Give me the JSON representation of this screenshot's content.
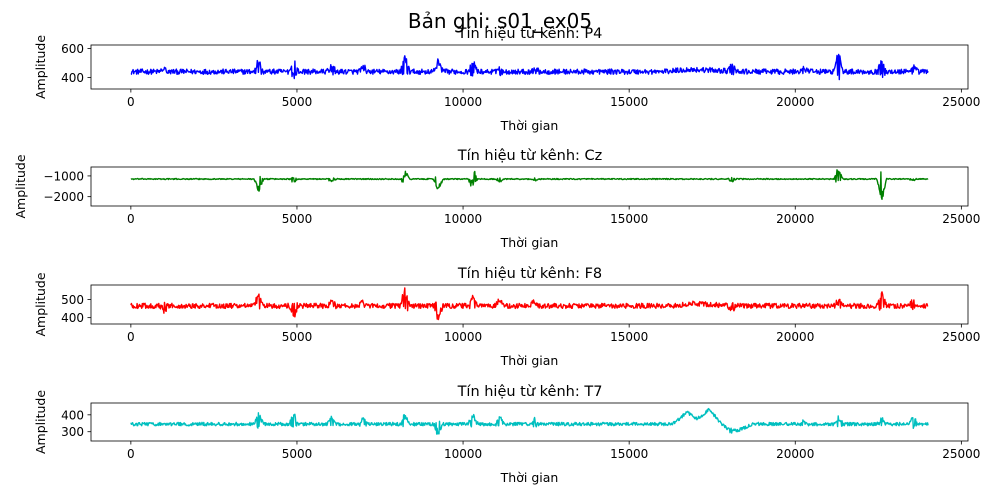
{
  "suptitle": "Bản ghi: s01_ex05",
  "chart_data": [
    {
      "type": "line",
      "title": "Tín hiệu từ kênh: P4",
      "xlabel": "Thời gian",
      "ylabel": "Amplitude",
      "color": "#0000ff",
      "xlim": [
        -1200,
        25200
      ],
      "ylim": [
        320,
        625
      ],
      "xticks": [
        0,
        5000,
        10000,
        15000,
        20000,
        25000
      ],
      "yticks": [
        400,
        600
      ],
      "series": [
        {
          "n_samples": 24000,
          "baseline": 440,
          "noise_amplitude": 18,
          "drift": [
            [
              0,
              0
            ],
            [
              16000,
              0
            ],
            [
              16800,
              15
            ],
            [
              17600,
              10
            ],
            [
              18200,
              0
            ]
          ],
          "bursts": [
            {
              "x": 1000,
              "amp": 20
            },
            {
              "x": 3850,
              "amp": 100
            },
            {
              "x": 4900,
              "amp": 100
            },
            {
              "x": 6050,
              "amp": 50
            },
            {
              "x": 7000,
              "amp": 40
            },
            {
              "x": 8250,
              "amp": 120
            },
            {
              "x": 9250,
              "amp": 90
            },
            {
              "x": 10300,
              "amp": 80
            },
            {
              "x": 11100,
              "amp": 40
            },
            {
              "x": 12150,
              "amp": 35
            },
            {
              "x": 18100,
              "amp": 60
            },
            {
              "x": 20250,
              "amp": 30
            },
            {
              "x": 21300,
              "amp": 165
            },
            {
              "x": 22600,
              "amp": 95
            },
            {
              "x": 23550,
              "amp": 50
            }
          ]
        }
      ]
    },
    {
      "type": "line",
      "title": "Tín hiệu từ kênh: Cz",
      "xlabel": "Thời gian",
      "ylabel": "Amplitude",
      "color": "#008000",
      "xlim": [
        -1200,
        25200
      ],
      "ylim": [
        -2450,
        -570
      ],
      "xticks": [
        0,
        5000,
        10000,
        15000,
        20000,
        25000
      ],
      "yticks": [
        -1000,
        -2000
      ],
      "series": [
        {
          "n_samples": 24000,
          "baseline": -1150,
          "noise_amplitude": 25,
          "drift": [],
          "bursts": [
            {
              "x": 3850,
              "amp": -650
            },
            {
              "x": 4900,
              "amp": -200
            },
            {
              "x": 6050,
              "amp": -150
            },
            {
              "x": 8250,
              "amp": 450
            },
            {
              "x": 8250,
              "amp": -200
            },
            {
              "x": 9250,
              "amp": -650
            },
            {
              "x": 10300,
              "amp": 350
            },
            {
              "x": 10300,
              "amp": -600
            },
            {
              "x": 11100,
              "amp": -150
            },
            {
              "x": 12150,
              "amp": -100
            },
            {
              "x": 18100,
              "amp": -150
            },
            {
              "x": 21300,
              "amp": 550
            },
            {
              "x": 21300,
              "amp": -150
            },
            {
              "x": 22600,
              "amp": -1300
            },
            {
              "x": 23550,
              "amp": -100
            }
          ]
        }
      ]
    },
    {
      "type": "line",
      "title": "Tín hiệu từ kênh: F8",
      "xlabel": "Thời gian",
      "ylabel": "Amplitude",
      "color": "#ff0000",
      "xlim": [
        -1200,
        25200
      ],
      "ylim": [
        365,
        580
      ],
      "xticks": [
        0,
        5000,
        10000,
        15000,
        20000,
        25000
      ],
      "yticks": [
        400,
        500
      ],
      "series": [
        {
          "n_samples": 24000,
          "baseline": 465,
          "noise_amplitude": 14,
          "drift": [
            [
              0,
              0
            ],
            [
              16300,
              0
            ],
            [
              16900,
              12
            ],
            [
              17700,
              5
            ],
            [
              18300,
              0
            ]
          ],
          "bursts": [
            {
              "x": 1000,
              "amp": -45
            },
            {
              "x": 3850,
              "amp": 75
            },
            {
              "x": 4900,
              "amp": -70
            },
            {
              "x": 6050,
              "amp": 40
            },
            {
              "x": 7000,
              "amp": 30
            },
            {
              "x": 8250,
              "amp": 95
            },
            {
              "x": 9250,
              "amp": -85
            },
            {
              "x": 10300,
              "amp": 70
            },
            {
              "x": 11100,
              "amp": 40
            },
            {
              "x": 12150,
              "amp": 35
            },
            {
              "x": 18100,
              "amp": -45
            },
            {
              "x": 21300,
              "amp": 45
            },
            {
              "x": 22600,
              "amp": 95
            },
            {
              "x": 23550,
              "amp": 40
            }
          ]
        }
      ]
    },
    {
      "type": "line",
      "title": "Tín hiệu từ kênh: T7",
      "xlabel": "Thời gian",
      "ylabel": "Amplitude",
      "color": "#00bfbf",
      "xlim": [
        -1200,
        25200
      ],
      "ylim": [
        245,
        470
      ],
      "xticks": [
        0,
        5000,
        10000,
        15000,
        20000,
        25000
      ],
      "yticks": [
        300,
        400
      ],
      "series": [
        {
          "n_samples": 24000,
          "baseline": 345,
          "noise_amplitude": 10,
          "drift": [
            [
              0,
              0
            ],
            [
              16300,
              0
            ],
            [
              16750,
              70
            ],
            [
              17050,
              30
            ],
            [
              17400,
              85
            ],
            [
              17800,
              0
            ],
            [
              18100,
              -55
            ],
            [
              18700,
              0
            ]
          ],
          "bursts": [
            {
              "x": 3850,
              "amp": 75
            },
            {
              "x": 4900,
              "amp": 80
            },
            {
              "x": 6050,
              "amp": 50
            },
            {
              "x": 7000,
              "amp": 45
            },
            {
              "x": 8250,
              "amp": 70
            },
            {
              "x": 9250,
              "amp": -75
            },
            {
              "x": 10300,
              "amp": 70
            },
            {
              "x": 11100,
              "amp": 50
            },
            {
              "x": 12150,
              "amp": 35
            },
            {
              "x": 18100,
              "amp": 30
            },
            {
              "x": 20250,
              "amp": 25
            },
            {
              "x": 21300,
              "amp": 45
            },
            {
              "x": 22600,
              "amp": 45
            },
            {
              "x": 23550,
              "amp": 60
            }
          ]
        }
      ]
    }
  ]
}
